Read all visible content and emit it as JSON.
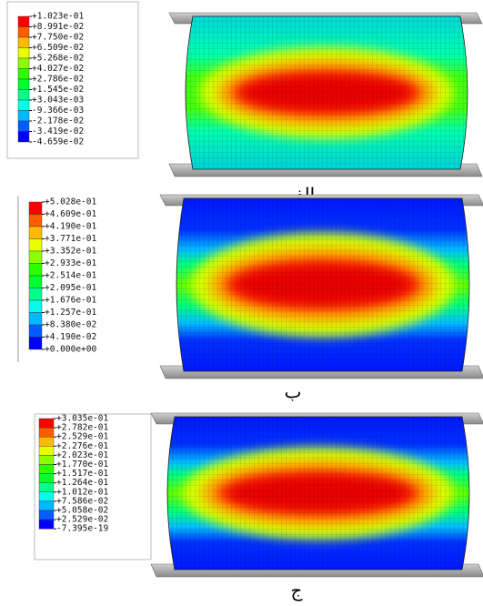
{
  "panels": [
    {
      "legend": [
        "+1.023e-01",
        "+8.991e-02",
        "+7.750e-02",
        "+6.509e-02",
        "+5.268e-02",
        "+4.027e-02",
        "+2.786e-02",
        "+1.545e-02",
        "+3.043e-03",
        "-9.366e-03",
        "-2.178e-02",
        "-3.419e-02",
        "-4.659e-02"
      ],
      "caption": "الف"
    },
    {
      "legend": [
        "+5.028e-01",
        "+4.609e-01",
        "+4.190e-01",
        "+3.771e-01",
        "+3.352e-01",
        "+2.933e-01",
        "+2.514e-01",
        "+2.095e-01",
        "+1.676e-01",
        "+1.257e-01",
        "+8.380e-02",
        "+4.190e-02",
        "+0.000e+00"
      ],
      "caption": "ب"
    },
    {
      "legend": [
        "+3.035e-01",
        "+2.782e-01",
        "+2.529e-01",
        "+2.276e-01",
        "+2.023e-01",
        "+1.770e-01",
        "+1.517e-01",
        "+1.264e-01",
        "+1.012e-01",
        "+7.586e-02",
        "+5.058e-02",
        "+2.529e-02",
        "-7.395e-19"
      ],
      "caption": "ج"
    }
  ]
}
